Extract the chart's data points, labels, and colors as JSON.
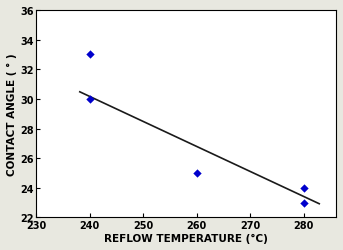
{
  "x_data": [
    240,
    240,
    260,
    280,
    280
  ],
  "y_data": [
    33.0,
    30.0,
    25.0,
    24.0,
    23.0
  ],
  "trend_x": [
    238,
    283
  ],
  "trend_y": [
    30.5,
    22.9
  ],
  "marker_color": "#0000cc",
  "marker_size": 18,
  "line_color": "#1a1a1a",
  "line_width": 1.2,
  "xlabel": "REFLOW TEMPERATURE (°C)",
  "ylabel": "CONTACT ANGLE ( ° )",
  "xlim": [
    230,
    286
  ],
  "ylim": [
    22,
    36
  ],
  "xticks": [
    230,
    240,
    250,
    260,
    270,
    280
  ],
  "yticks": [
    22,
    24,
    26,
    28,
    30,
    32,
    34,
    36
  ],
  "xlabel_fontsize": 7.5,
  "ylabel_fontsize": 7.5,
  "tick_fontsize": 7,
  "background_color": "#ffffff",
  "fig_facecolor": "#e8e8e0"
}
